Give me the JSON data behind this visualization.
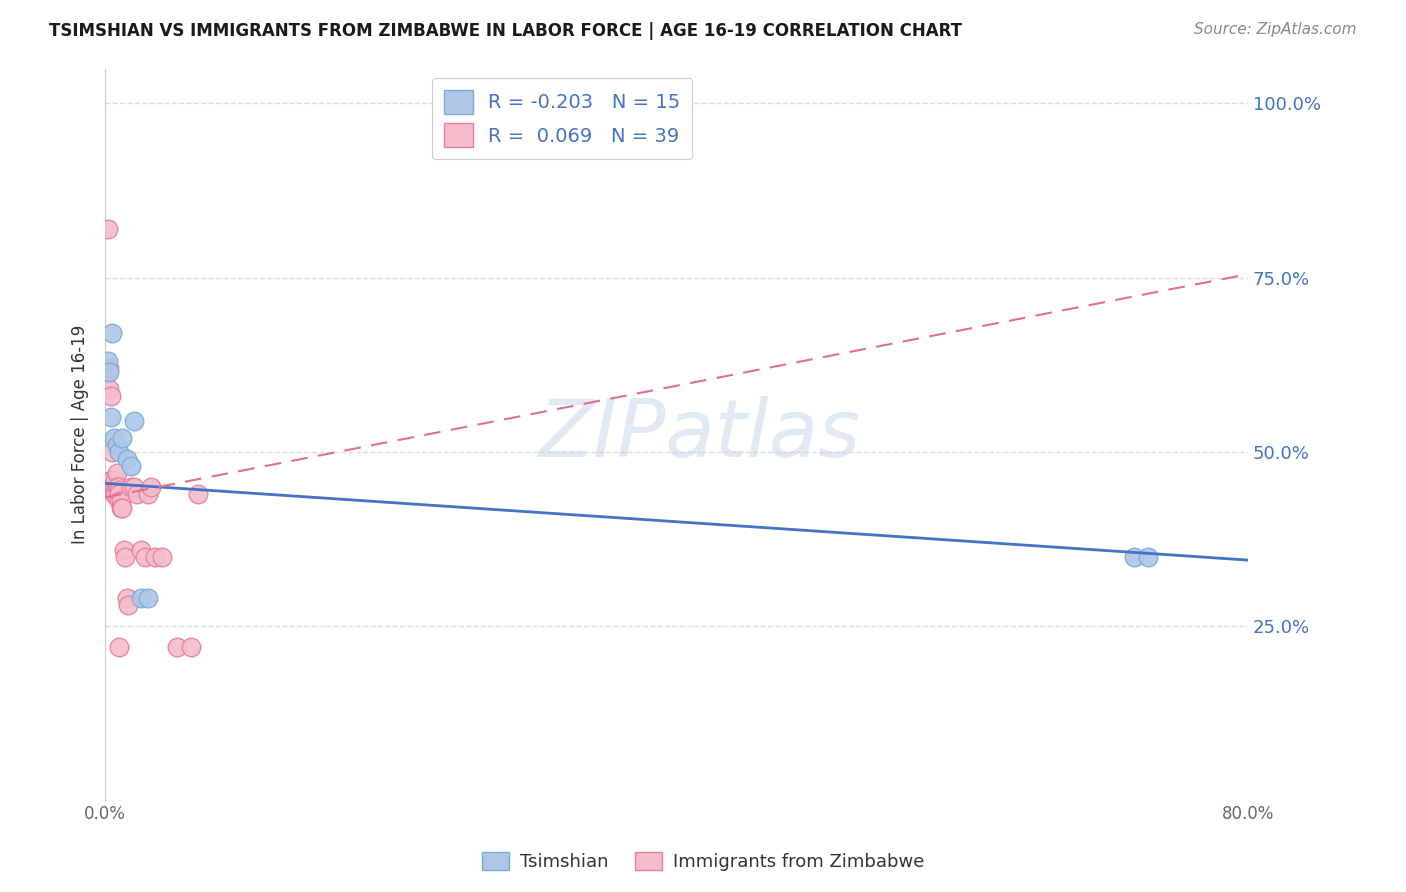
{
  "title": "TSIMSHIAN VS IMMIGRANTS FROM ZIMBABWE IN LABOR FORCE | AGE 16-19 CORRELATION CHART",
  "source": "Source: ZipAtlas.com",
  "ylabel": "In Labor Force | Age 16-19",
  "watermark": "ZIPatlas",
  "xmin": 0.0,
  "xmax": 0.8,
  "ymin": 0.0,
  "ymax": 1.05,
  "y_tick_positions": [
    0.0,
    0.25,
    0.5,
    0.75,
    1.0
  ],
  "y_tick_labels": [
    "",
    "25.0%",
    "50.0%",
    "75.0%",
    "100.0%"
  ],
  "tsimshian_color": "#aec6e8",
  "tsimshian_edge_color": "#7aadd4",
  "zimbabwe_color": "#f5bccb",
  "zimbabwe_edge_color": "#e8809e",
  "tsimshian_R": -0.203,
  "tsimshian_N": 15,
  "zimbabwe_R": 0.069,
  "zimbabwe_N": 39,
  "tsimshian_line_color": "#4472c4",
  "zimbabwe_line_color": "#e07090",
  "legend_text_color": "#4472c4",
  "grid_color": "#dddddd",
  "background_color": "#ffffff",
  "tsimshian_line_x0": 0.0,
  "tsimshian_line_y0": 0.455,
  "tsimshian_line_x1": 0.8,
  "tsimshian_line_y1": 0.345,
  "zimbabwe_line_x0": 0.0,
  "zimbabwe_line_y0": 0.435,
  "zimbabwe_line_x1": 0.8,
  "zimbabwe_line_y1": 0.755,
  "tsimshian_x": [
    0.002,
    0.003,
    0.004,
    0.005,
    0.006,
    0.008,
    0.01,
    0.012,
    0.015,
    0.018,
    0.02,
    0.025,
    0.03,
    0.72,
    0.73
  ],
  "tsimshian_y": [
    0.63,
    0.615,
    0.55,
    0.67,
    0.52,
    0.51,
    0.5,
    0.52,
    0.49,
    0.48,
    0.545,
    0.29,
    0.29,
    0.35,
    0.35
  ],
  "zimbabwe_x": [
    0.002,
    0.003,
    0.003,
    0.004,
    0.004,
    0.005,
    0.005,
    0.005,
    0.006,
    0.006,
    0.007,
    0.007,
    0.008,
    0.008,
    0.009,
    0.009,
    0.01,
    0.01,
    0.01,
    0.011,
    0.011,
    0.012,
    0.013,
    0.014,
    0.015,
    0.016,
    0.018,
    0.02,
    0.022,
    0.025,
    0.028,
    0.03,
    0.032,
    0.035,
    0.04,
    0.05,
    0.06,
    0.065,
    0.01
  ],
  "zimbabwe_y": [
    0.82,
    0.62,
    0.59,
    0.58,
    0.46,
    0.5,
    0.46,
    0.45,
    0.445,
    0.44,
    0.46,
    0.44,
    0.47,
    0.45,
    0.45,
    0.44,
    0.445,
    0.44,
    0.43,
    0.43,
    0.42,
    0.42,
    0.36,
    0.35,
    0.29,
    0.28,
    0.45,
    0.45,
    0.44,
    0.36,
    0.35,
    0.44,
    0.45,
    0.35,
    0.35,
    0.22,
    0.22,
    0.44,
    0.22
  ]
}
